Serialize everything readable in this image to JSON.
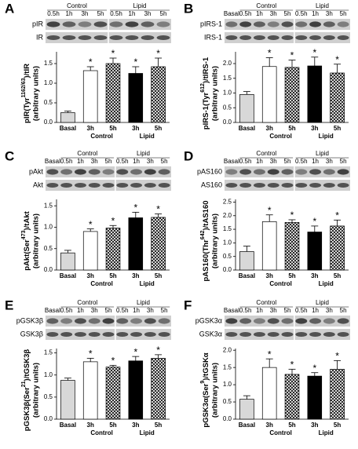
{
  "chart_data": [
    {
      "type": "bar",
      "panel": "A",
      "blot": {
        "rows": [
          "pIR",
          "IR"
        ],
        "lanes": [
          "0.5h",
          "1h",
          "3h",
          "5h",
          "0.5h",
          "1h",
          "3h",
          "5h"
        ],
        "groups": [
          "Control",
          "Lipid"
        ]
      },
      "ylabel": {
        "pre": "pIR(Tyr",
        "sup": "1162/63",
        "post": ")/tIR"
      },
      "ylabel2": "(arbitrary units)",
      "categories": [
        "Basal",
        "3h",
        "5h",
        "3h",
        "5h"
      ],
      "group_labels": [
        "Control",
        "Lipid"
      ],
      "values": [
        0.25,
        1.32,
        1.5,
        1.25,
        1.42
      ],
      "errors": [
        0.04,
        0.1,
        0.14,
        0.17,
        0.22
      ],
      "significance": [
        null,
        "*",
        "*",
        "*",
        "*"
      ],
      "fills": [
        "#d8d8d8",
        "#ffffff",
        "crosshatch-white",
        "#000000",
        "crosshatch-black"
      ],
      "ylim": [
        0,
        1.8
      ],
      "yticks": [
        {
          "value": 0,
          "label": "0.0"
        },
        0.5,
        {
          "value": 1,
          "label": "1.0"
        },
        1.5
      ]
    },
    {
      "type": "bar",
      "panel": "B",
      "blot": {
        "rows": [
          "pIRS-1",
          "IRS-1"
        ],
        "lanes": [
          "Basal",
          "0.5h",
          "1h",
          "3h",
          "5h",
          "0.5h",
          "1h",
          "3h",
          "5h"
        ],
        "groups": [
          "Control",
          "Lipid"
        ]
      },
      "ylabel": {
        "pre": "pIRS-1(Tyr",
        "sup": "612",
        "post": ")/tIRS-1"
      },
      "ylabel2": "(arbitrary units)",
      "categories": [
        "Basal",
        "3h",
        "5h",
        "3h",
        "5h"
      ],
      "group_labels": [
        "Control",
        "Lipid"
      ],
      "values": [
        0.95,
        1.9,
        1.87,
        1.92,
        1.68
      ],
      "errors": [
        0.1,
        0.3,
        0.25,
        0.3,
        0.3
      ],
      "significance": [
        null,
        "*",
        "*",
        "*",
        "*"
      ],
      "fills": [
        "#d8d8d8",
        "#ffffff",
        "crosshatch-white",
        "#000000",
        "crosshatch-black"
      ],
      "ylim": [
        0,
        2.4
      ],
      "yticks": [
        {
          "value": 0,
          "label": "0.0"
        },
        0.5,
        {
          "value": 1,
          "label": "1.0"
        },
        1.5,
        {
          "value": 2,
          "label": "2.0"
        }
      ]
    },
    {
      "type": "bar",
      "panel": "C",
      "blot": {
        "rows": [
          "pAkt",
          "Akt"
        ],
        "lanes": [
          "Basal",
          "0.5h",
          "1h",
          "3h",
          "5h",
          "0.5h",
          "1h",
          "3h",
          "5h"
        ],
        "groups": [
          "Control",
          "Lipid"
        ]
      },
      "ylabel": {
        "pre": "pAkt(Ser",
        "sup": "473",
        "post": ")/tAkt"
      },
      "ylabel2": "(arbitrary units)",
      "categories": [
        "Basal",
        "3h",
        "5h",
        "3h",
        "5h"
      ],
      "group_labels": [
        "Control",
        "Lipid"
      ],
      "values": [
        0.4,
        0.9,
        0.98,
        1.22,
        1.23
      ],
      "errors": [
        0.06,
        0.06,
        0.06,
        0.13,
        0.08
      ],
      "significance": [
        null,
        "*",
        "*",
        "*",
        "*"
      ],
      "fills": [
        "#d8d8d8",
        "#ffffff",
        "crosshatch-white",
        "#000000",
        "crosshatch-black"
      ],
      "ylim": [
        0,
        1.65
      ],
      "yticks": [
        {
          "value": 0,
          "label": "0.0"
        },
        0.5,
        {
          "value": 1,
          "label": "1.0"
        },
        1.5
      ]
    },
    {
      "type": "bar",
      "panel": "D",
      "blot": {
        "rows": [
          "pAS160",
          "AS160"
        ],
        "lanes": [
          "Basal",
          "0.5h",
          "1h",
          "3h",
          "5h",
          "0.5h",
          "1h",
          "3h",
          "5h"
        ],
        "groups": [
          "Control",
          "Lipid"
        ]
      },
      "ylabel": {
        "pre": "pAS160(Thr",
        "sup": "642",
        "post": ")/tAS160"
      },
      "ylabel2": "(arbitrary units)",
      "categories": [
        "Basal",
        "3h",
        "5h",
        "3h",
        "5h"
      ],
      "group_labels": [
        "Control",
        "Lipid"
      ],
      "values": [
        0.68,
        1.78,
        1.75,
        1.4,
        1.62
      ],
      "errors": [
        0.2,
        0.25,
        0.1,
        0.22,
        0.22
      ],
      "significance": [
        null,
        "*",
        "*",
        "*",
        "*"
      ],
      "fills": [
        "#d8d8d8",
        "#ffffff",
        "crosshatch-white",
        "#000000",
        "crosshatch-black"
      ],
      "ylim": [
        0,
        2.6
      ],
      "yticks": [
        {
          "value": 0,
          "label": "0.0"
        },
        0.5,
        {
          "value": 1,
          "label": "1.0"
        },
        1.5,
        {
          "value": 2,
          "label": "2.0"
        },
        2.5
      ]
    },
    {
      "type": "bar",
      "panel": "E",
      "blot": {
        "rows": [
          "pGSK3β",
          "GSK3β"
        ],
        "lanes": [
          "Basal",
          "0.5h",
          "1h",
          "3h",
          "5h",
          "0.5h",
          "1h",
          "3h",
          "5h"
        ],
        "groups": [
          "Control",
          "Lipid"
        ]
      },
      "ylabel": {
        "pre": "pGSK3β(Ser",
        "sup": "21",
        "post": ")/tGSK3β"
      },
      "ylabel2": "(arbitrary units)",
      "categories": [
        "Basal",
        "3h",
        "5h",
        "3h",
        "5h"
      ],
      "group_labels": [
        "Control",
        "Lipid"
      ],
      "values": [
        0.88,
        1.3,
        1.18,
        1.32,
        1.38
      ],
      "errors": [
        0.05,
        0.08,
        0.04,
        0.1,
        0.08
      ],
      "significance": [
        null,
        "*",
        "*",
        "*",
        "*"
      ],
      "fills": [
        "#d8d8d8",
        "#ffffff",
        "crosshatch-white",
        "#000000",
        "crosshatch-black"
      ],
      "ylim": [
        0,
        1.6
      ],
      "yticks": [
        {
          "value": 0,
          "label": "0.0"
        },
        0.5,
        {
          "value": 1,
          "label": "1.0"
        },
        1.5
      ]
    },
    {
      "type": "bar",
      "panel": "F",
      "blot": {
        "rows": [
          "pGSK3α",
          "GSK3α"
        ],
        "lanes": [
          "Basal",
          "0.5h",
          "1h",
          "3h",
          "5h",
          "0.5h",
          "1h",
          "3h",
          "5h"
        ],
        "groups": [
          "Control",
          "Lipid"
        ]
      },
      "ylabel": {
        "pre": "pGSK3α(Ser",
        "sup": "9",
        "post": ")/tGSKα"
      },
      "ylabel2": "(arbitrary units)",
      "categories": [
        "Basal",
        "3h",
        "5h",
        "3h",
        "5h"
      ],
      "group_labels": [
        "Control",
        "Lipid"
      ],
      "values": [
        0.58,
        1.5,
        1.3,
        1.25,
        1.45
      ],
      "errors": [
        0.1,
        0.25,
        0.15,
        0.1,
        0.25
      ],
      "significance": [
        null,
        "*",
        "*",
        "*",
        "*"
      ],
      "fills": [
        "#d8d8d8",
        "#ffffff",
        "crosshatch-white",
        "#000000",
        "crosshatch-black"
      ],
      "ylim": [
        0,
        2.05
      ],
      "yticks": [
        {
          "value": 0,
          "label": "0.0"
        },
        0.5,
        {
          "value": 1,
          "label": "1.0"
        },
        1.5,
        {
          "value": 2,
          "label": "2.0"
        }
      ]
    }
  ]
}
